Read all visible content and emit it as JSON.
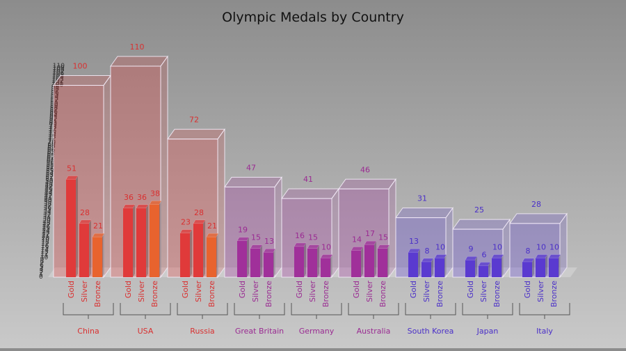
{
  "chart_data": {
    "type": "bar",
    "title": "Olympic Medals by Country",
    "xlabel": "",
    "ylabel": "",
    "ylim": [
      0,
      110
    ],
    "y_ticks_step": 1,
    "grid": false,
    "legend": "none",
    "medal_labels": [
      "Gold",
      "Silver",
      "Bronze"
    ],
    "groups": [
      {
        "name": "China",
        "total": 100,
        "values": [
          51,
          28,
          21
        ],
        "color": "#e03a3a"
      },
      {
        "name": "USA",
        "total": 110,
        "values": [
          36,
          36,
          38
        ],
        "color": "#e03a3a"
      },
      {
        "name": "Russia",
        "total": 72,
        "values": [
          23,
          28,
          21
        ],
        "color": "#e03a3a"
      },
      {
        "name": "Great Britain",
        "total": 47,
        "values": [
          19,
          15,
          13
        ],
        "color": "#a0309a"
      },
      {
        "name": "Germany",
        "total": 41,
        "values": [
          16,
          15,
          10
        ],
        "color": "#a0309a"
      },
      {
        "name": "Australia",
        "total": 46,
        "values": [
          14,
          17,
          15
        ],
        "color": "#a0309a"
      },
      {
        "name": "South Korea",
        "total": 31,
        "values": [
          13,
          8,
          10
        ],
        "color": "#5a3ad0"
      },
      {
        "name": "Japan",
        "total": 25,
        "values": [
          9,
          6,
          10
        ],
        "color": "#5a3ad0"
      },
      {
        "name": "Italy",
        "total": 28,
        "values": [
          8,
          10,
          10
        ],
        "color": "#5a3ad0"
      }
    ]
  }
}
